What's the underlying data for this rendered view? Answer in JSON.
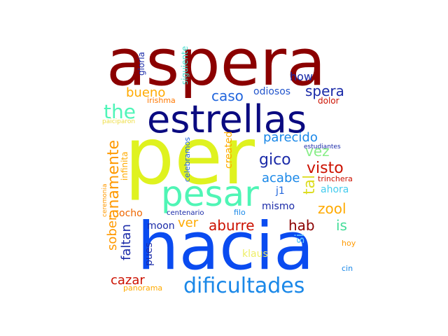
{
  "word_cloud": {
    "words": [
      {
        "text": "aspera",
        "color": "#8b0000"
      },
      {
        "text": "per",
        "color": "#dff21f"
      },
      {
        "text": "hacia",
        "color": "#0a4bf0"
      },
      {
        "text": "estrellas",
        "color": "#0a0a80"
      },
      {
        "text": "pesar",
        "color": "#4ff5b5"
      },
      {
        "text": "dificultades",
        "color": "#1a88e8"
      },
      {
        "text": "the",
        "color": "#50f5b8"
      },
      {
        "text": "caso",
        "color": "#2266dd"
      },
      {
        "text": "spera",
        "color": "#1a2aa8"
      },
      {
        "text": "odiosos",
        "color": "#2255cc"
      },
      {
        "text": "bueno",
        "color": "#ffaa00"
      },
      {
        "text": "how",
        "color": "#1a2aa8"
      },
      {
        "text": "irishma",
        "color": "#ff7700"
      },
      {
        "text": "dolor",
        "color": "#cc1100"
      },
      {
        "text": "gloria",
        "color": "#1a2aa8"
      },
      {
        "text": "siguiente",
        "color": "#44ddcc"
      },
      {
        "text": "paiciparon",
        "color": "#eedd44"
      },
      {
        "text": "parecido",
        "color": "#1a88e8"
      },
      {
        "text": "created",
        "color": "#ffaa00"
      },
      {
        "text": "celebramos",
        "color": "#2266dd"
      },
      {
        "text": "infinita",
        "color": "#ffaa00"
      },
      {
        "text": "estudiantes",
        "color": "#1a2aa8"
      },
      {
        "text": "vez",
        "color": "#88ee88"
      },
      {
        "text": "gico",
        "color": "#1a2aa8"
      },
      {
        "text": "visto",
        "color": "#cc1100"
      },
      {
        "text": "trinchera",
        "color": "#cc1100"
      },
      {
        "text": "anamente",
        "color": "#ff9900"
      },
      {
        "text": "acabe",
        "color": "#1a88e8"
      },
      {
        "text": "tal",
        "color": "#dddd22"
      },
      {
        "text": "ahora",
        "color": "#44ccee"
      },
      {
        "text": "j1",
        "color": "#2266dd"
      },
      {
        "text": "zool",
        "color": "#ffaa00"
      },
      {
        "text": "mismo",
        "color": "#1a2aa8"
      },
      {
        "text": "ceremonia",
        "color": "#ff9900"
      },
      {
        "text": "sober",
        "color": "#ff9900"
      },
      {
        "text": "ocho",
        "color": "#ee6600"
      },
      {
        "text": "centenario",
        "color": "#1a2aa8"
      },
      {
        "text": "filo",
        "color": "#1a88e8"
      },
      {
        "text": "is",
        "color": "#44dd99"
      },
      {
        "text": "ver",
        "color": "#ffaa00"
      },
      {
        "text": "aburre",
        "color": "#cc1100"
      },
      {
        "text": "hab",
        "color": "#8b0000"
      },
      {
        "text": "moon",
        "color": "#1a2aa8"
      },
      {
        "text": "faltan",
        "color": "#1a2aa8"
      },
      {
        "text": "si",
        "color": "#66ccff"
      },
      {
        "text": "hoy",
        "color": "#ff9900"
      },
      {
        "text": "pues",
        "color": "#1a2aa8"
      },
      {
        "text": "klaus",
        "color": "#eeee66"
      },
      {
        "text": "cin",
        "color": "#1a88e8"
      },
      {
        "text": "cazar",
        "color": "#cc1100"
      },
      {
        "text": "panorama",
        "color": "#ffaa00"
      }
    ]
  }
}
